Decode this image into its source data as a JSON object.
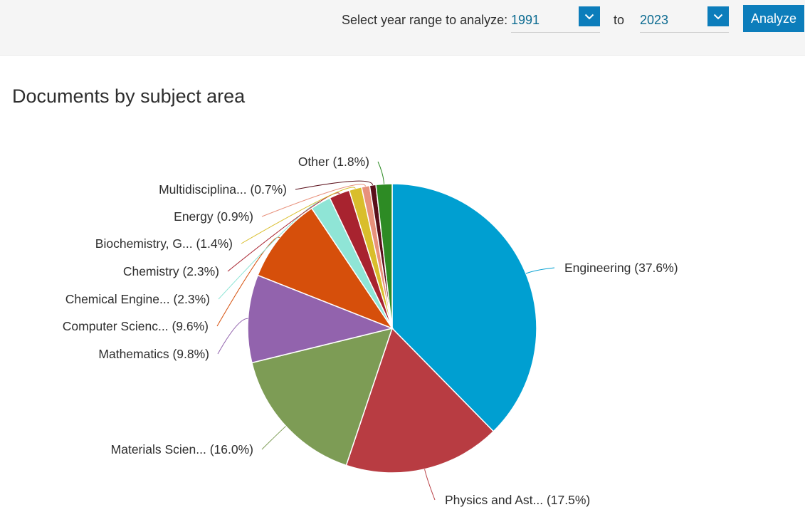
{
  "toolbar": {
    "range_label": "Select year range to analyze:",
    "year_from": "1991",
    "to_label": "to",
    "year_to": "2023",
    "analyze_label": "Analyze"
  },
  "page": {
    "title": "Documents by subject area"
  },
  "chart_data": {
    "type": "pie",
    "unit": "%",
    "slices": [
      {
        "label": "Engineering",
        "value": 37.6,
        "color": "#009fd1",
        "label_text": "Engineering (37.6%)"
      },
      {
        "label": "Physics and Ast...",
        "value": 17.5,
        "color": "#b83c42",
        "label_text": "Physics and Ast... (17.5%)"
      },
      {
        "label": "Materials Scien...",
        "value": 16.0,
        "color": "#7d9c55",
        "label_text": "Materials Scien... (16.0%)"
      },
      {
        "label": "Mathematics",
        "value": 9.8,
        "color": "#9263ad",
        "label_text": "Mathematics (9.8%)"
      },
      {
        "label": "Computer Scienc...",
        "value": 9.6,
        "color": "#d64f0b",
        "label_text": "Computer Scienc... (9.6%)"
      },
      {
        "label": "Chemical Engine...",
        "value": 2.3,
        "color": "#8fe5d6",
        "label_text": "Chemical Engine... (2.3%)"
      },
      {
        "label": "Chemistry",
        "value": 2.3,
        "color": "#a8232f",
        "label_text": "Chemistry (2.3%)"
      },
      {
        "label": "Biochemistry, G...",
        "value": 1.4,
        "color": "#d9be2c",
        "label_text": "Biochemistry, G... (1.4%)"
      },
      {
        "label": "Energy",
        "value": 0.9,
        "color": "#e8917c",
        "label_text": "Energy (0.9%)"
      },
      {
        "label": "Multidisciplina...",
        "value": 0.7,
        "color": "#5a0f1a",
        "label_text": "Multidisciplina... (0.7%)"
      },
      {
        "label": "Other",
        "value": 1.8,
        "color": "#2d8b24",
        "label_text": "Other (1.8%)"
      }
    ]
  }
}
